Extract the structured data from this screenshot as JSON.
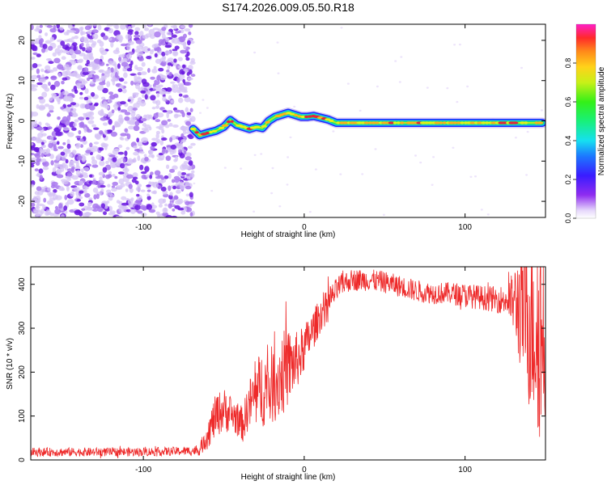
{
  "title": "S174.2026.009.05.50.R18",
  "colors": {
    "snr_line": "#ee2a2a",
    "track_core": "#e8243a",
    "track_mid": "#18e070",
    "track_edge": "#1e28ff",
    "noise_dark": "#6a18e0",
    "noise_light": "#d6c4f6"
  },
  "chart_data": [
    {
      "type": "heatmap",
      "title": "S174.2026.009.05.50.R18",
      "xlabel": "Height of straight line (km)",
      "ylabel": "Frequency (Hz)",
      "xlim": [
        -170,
        150
      ],
      "ylim": [
        -24,
        24
      ],
      "xticks": [
        -100,
        0,
        100
      ],
      "xtick_labels": [
        "-100",
        "0",
        "100"
      ],
      "yticks": [
        20,
        10,
        0,
        -10,
        -20
      ],
      "ytick_labels": [
        "20",
        "10",
        "0",
        "-10",
        "-20"
      ],
      "noise_region_x": [
        -170,
        -69
      ],
      "ridge": {
        "x": [
          -69,
          -65,
          -60,
          -55,
          -50,
          -46,
          -42,
          -38,
          -34,
          -30,
          -26,
          -22,
          -18,
          -14,
          -10,
          -6,
          -2,
          2,
          6,
          10,
          15,
          20,
          25,
          30,
          40,
          50,
          60,
          70,
          80,
          90,
          100,
          110,
          120,
          130,
          140,
          148
        ],
        "y": [
          -2.0,
          -3.6,
          -3.0,
          -2.5,
          -1.5,
          0.2,
          -1.0,
          -1.5,
          -2.0,
          -1.5,
          -1.8,
          0.0,
          1.0,
          1.5,
          2.0,
          1.5,
          1.0,
          1.0,
          1.2,
          0.8,
          0.3,
          -0.5,
          -0.5,
          -0.5,
          -0.5,
          -0.5,
          -0.5,
          -0.5,
          -0.5,
          -0.5,
          -0.5,
          -0.5,
          -0.5,
          -0.5,
          -0.5,
          -0.5
        ],
        "amplitude": [
          0.7,
          0.8,
          0.75,
          0.7,
          0.75,
          0.8,
          0.6,
          0.7,
          0.8,
          0.6,
          0.6,
          0.7,
          0.65,
          0.7,
          0.75,
          0.7,
          0.75,
          0.9,
          0.95,
          0.85,
          0.8,
          0.6,
          0.7,
          0.7,
          0.7,
          0.7,
          0.7,
          0.75,
          0.7,
          0.7,
          0.75,
          0.7,
          0.7,
          0.75,
          0.7,
          0.7
        ]
      }
    },
    {
      "type": "colorbar",
      "label": "Normalized spectral amplitude",
      "range": [
        0,
        1
      ],
      "ticks": [
        0.0,
        0.2,
        0.4,
        0.6,
        0.8
      ],
      "tick_labels": [
        "0.0",
        "0.2",
        "0.4",
        "0.6",
        "0.8"
      ]
    },
    {
      "type": "line",
      "xlabel": "Height of straight line (km)",
      "ylabel": "SNR (10 * v/v)",
      "xlim": [
        -170,
        150
      ],
      "ylim": [
        0,
        440
      ],
      "xticks": [
        -100,
        0,
        100
      ],
      "xtick_labels": [
        "-100",
        "0",
        "100"
      ],
      "yticks": [
        0,
        100,
        200,
        300,
        400
      ],
      "ytick_labels": [
        "0",
        "100",
        "200",
        "300",
        "400"
      ],
      "series": [
        {
          "name": "SNR",
          "x": [
            -170,
            -150,
            -130,
            -110,
            -90,
            -75,
            -65,
            -60,
            -55,
            -50,
            -46,
            -42,
            -38,
            -35,
            -30,
            -26,
            -22,
            -18,
            -14,
            -10,
            -6,
            -2,
            2,
            6,
            10,
            14,
            18,
            22,
            26,
            30,
            40,
            50,
            60,
            70,
            80,
            90,
            100,
            110,
            120,
            125,
            130,
            135,
            140,
            145,
            148
          ],
          "center": [
            18,
            18,
            18,
            18,
            19,
            20,
            22,
            60,
            100,
            115,
            105,
            95,
            80,
            120,
            150,
            165,
            165,
            175,
            195,
            210,
            220,
            240,
            270,
            300,
            330,
            350,
            375,
            395,
            405,
            410,
            410,
            405,
            395,
            385,
            380,
            380,
            375,
            370,
            365,
            365,
            360,
            350,
            330,
            300,
            280
          ],
          "spread": [
            10,
            10,
            10,
            10,
            10,
            10,
            12,
            35,
            50,
            50,
            45,
            40,
            40,
            55,
            80,
            90,
            90,
            90,
            100,
            90,
            70,
            60,
            50,
            45,
            40,
            35,
            30,
            28,
            25,
            25,
            25,
            25,
            25,
            25,
            25,
            25,
            28,
            28,
            30,
            35,
            70,
            160,
            220,
            250,
            250
          ]
        }
      ]
    }
  ]
}
